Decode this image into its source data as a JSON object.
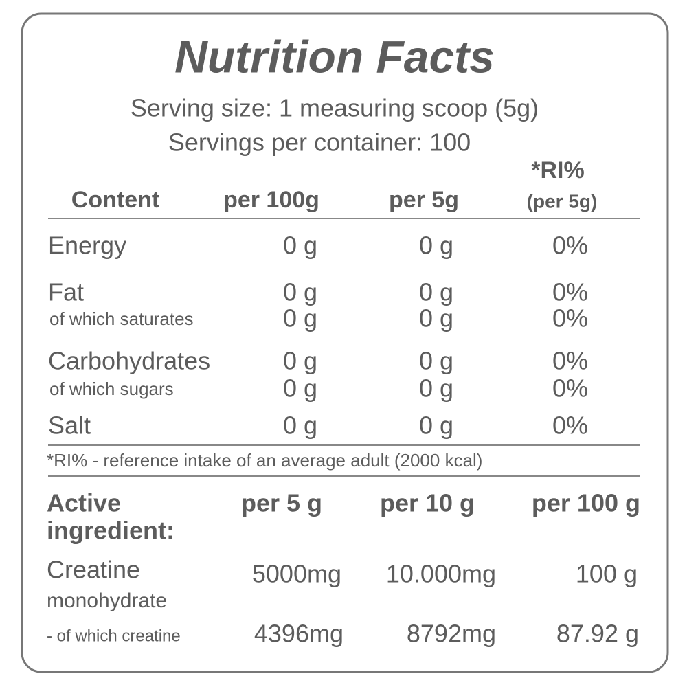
{
  "title": "Nutrition Facts",
  "serving_size": "Serving size: 1 measuring scoop (5g)",
  "servings_per_container": "Servings per container: 100",
  "table": {
    "headers": [
      "Content",
      "per 100g",
      "per 5g",
      "*RI%",
      "(per 5g)"
    ],
    "rows": [
      {
        "label": "Energy",
        "per_100g": "0 g",
        "per_5g": "0 g",
        "ri": "0%"
      },
      {
        "label": "Fat",
        "per_100g": "0 g",
        "per_5g": "0 g",
        "ri": "0%"
      },
      {
        "label": "of which saturates",
        "per_100g": "0 g",
        "per_5g": "0 g",
        "ri": "0%"
      },
      {
        "label": "Carbohydrates",
        "per_100g": "0 g",
        "per_5g": "0 g",
        "ri": "0%"
      },
      {
        "label": "of which sugars",
        "per_100g": "0 g",
        "per_5g": "0 g",
        "ri": "0%"
      },
      {
        "label": "Salt",
        "per_100g": "0 g",
        "per_5g": "0 g",
        "ri": "0%"
      }
    ],
    "footnote": "*RI% - reference intake of an average adult (2000 kcal)"
  },
  "active_table": {
    "headers": [
      "Active",
      "ingredient:",
      "per 5 g",
      "per 10 g",
      "per 100 g"
    ],
    "rows": [
      {
        "label": "Creatine",
        "sublabel": "monohydrate",
        "per_5g": "5000mg",
        "per_10g": "10.000mg",
        "per_100g": "100 g"
      },
      {
        "label": "- of which creatine",
        "per_5g": "4396mg",
        "per_10g": "8792mg",
        "per_100g": "87.92 g"
      }
    ]
  }
}
